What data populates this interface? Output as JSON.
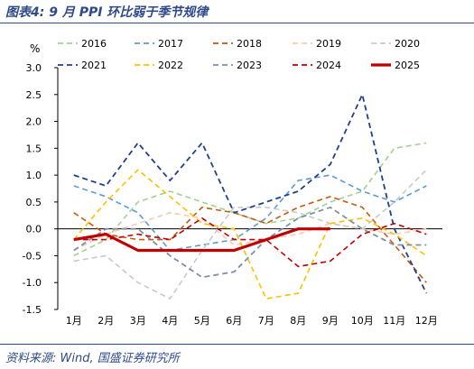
{
  "header": {
    "title": "图表4:  9 月 PPI 环比弱于季节规律"
  },
  "footer": {
    "source": "资料来源:  Wind, 国盛证券研究所"
  },
  "chart_data": {
    "type": "line",
    "unit_label": "%",
    "title": "图表4:  9 月 PPI 环比弱于季节规律",
    "categories": [
      "1月",
      "2月",
      "3月",
      "4月",
      "5月",
      "6月",
      "7月",
      "8月",
      "9月",
      "10月",
      "11月",
      "12月"
    ],
    "ylim": [
      -1.5,
      3.0
    ],
    "yticks": [
      "3.0",
      "2.5",
      "2.0",
      "1.5",
      "1.0",
      "0.5",
      "0.0",
      "-0.5",
      "-1.0",
      "-1.5"
    ],
    "grid": false,
    "legend_position": "top",
    "series": [
      {
        "name": "2016",
        "color": "#9fd38f",
        "dash": "dashed",
        "width": 1.6,
        "values": [
          -0.5,
          -0.2,
          0.5,
          0.7,
          0.5,
          0.3,
          0.1,
          0.2,
          0.5,
          0.7,
          1.5,
          1.6
        ]
      },
      {
        "name": "2017",
        "color": "#5b9bd5",
        "dash": "dashed",
        "width": 1.6,
        "values": [
          0.8,
          0.6,
          0.3,
          -0.4,
          -0.3,
          -0.2,
          0.2,
          0.9,
          1.0,
          0.7,
          0.5,
          0.8
        ]
      },
      {
        "name": "2018",
        "color": "#c55a11",
        "dash": "dashed",
        "width": 1.6,
        "values": [
          0.3,
          -0.1,
          -0.2,
          -0.2,
          0.4,
          0.3,
          0.1,
          0.4,
          0.6,
          0.4,
          -0.3,
          -1.0
        ]
      },
      {
        "name": "2019",
        "color": "#f8cbad",
        "dash": "dashed",
        "width": 1.6,
        "values": [
          -0.4,
          -0.1,
          0.1,
          0.3,
          0.2,
          -0.3,
          -0.2,
          -0.1,
          0.1,
          0.0,
          -0.1,
          0.0
        ]
      },
      {
        "name": "2020",
        "color": "#c9c9c9",
        "dash": "dashed",
        "width": 1.6,
        "values": [
          -0.6,
          -0.5,
          -1.0,
          -1.3,
          -0.4,
          0.4,
          0.4,
          0.3,
          0.1,
          0.0,
          0.5,
          1.1
        ]
      },
      {
        "name": "2021",
        "color": "#1f3f8f",
        "dash": "dashed",
        "width": 1.8,
        "values": [
          1.0,
          0.8,
          1.6,
          0.9,
          1.6,
          0.3,
          0.5,
          0.7,
          1.2,
          2.5,
          0.0,
          -1.2
        ]
      },
      {
        "name": "2022",
        "color": "#ffc000",
        "dash": "dashed",
        "width": 1.6,
        "values": [
          -0.2,
          0.5,
          1.1,
          0.6,
          0.1,
          0.0,
          -1.3,
          -1.2,
          0.1,
          0.2,
          -0.1,
          -0.5
        ]
      },
      {
        "name": "2023",
        "color": "#7f8fa9",
        "dash": "dashed",
        "width": 1.8,
        "values": [
          -0.4,
          0.0,
          0.0,
          -0.5,
          -0.9,
          -0.8,
          -0.2,
          0.2,
          0.4,
          0.0,
          -0.3,
          -0.3
        ]
      },
      {
        "name": "2024",
        "color": "#c00000",
        "dash": "dashed",
        "width": 1.6,
        "values": [
          -0.2,
          -0.2,
          -0.1,
          -0.2,
          0.2,
          -0.2,
          -0.2,
          -0.7,
          -0.6,
          -0.1,
          0.1,
          -0.1
        ]
      },
      {
        "name": "2025",
        "color": "#c00000",
        "dash": "solid",
        "width": 3.2,
        "values": [
          -0.2,
          -0.1,
          -0.4,
          -0.4,
          -0.4,
          -0.4,
          -0.2,
          0.0,
          0.0,
          null,
          null,
          null
        ]
      }
    ]
  }
}
